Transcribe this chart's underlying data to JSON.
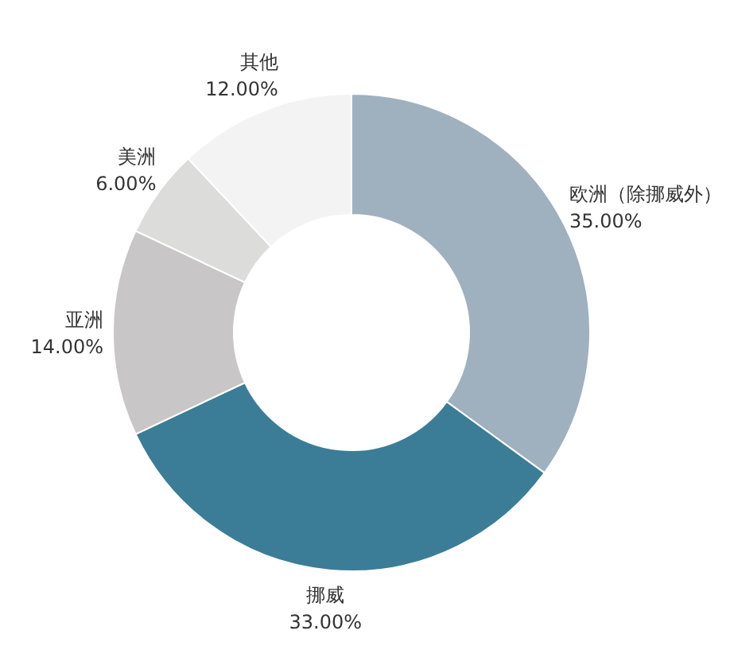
{
  "chart_data": {
    "type": "donut",
    "categories": [
      "欧洲（除挪威外）",
      "挪威",
      "亚洲",
      "美洲",
      "其他"
    ],
    "values": [
      35,
      33,
      14,
      6,
      12
    ],
    "colors": [
      "#9fb0be",
      "#3b7d96",
      "#c8c6c7",
      "#dcdcda",
      "#f3f3f3"
    ],
    "value_labels": [
      "35.00%",
      "33.00%",
      "14.00%",
      "6.00%",
      "12.00%"
    ],
    "legend": false
  }
}
